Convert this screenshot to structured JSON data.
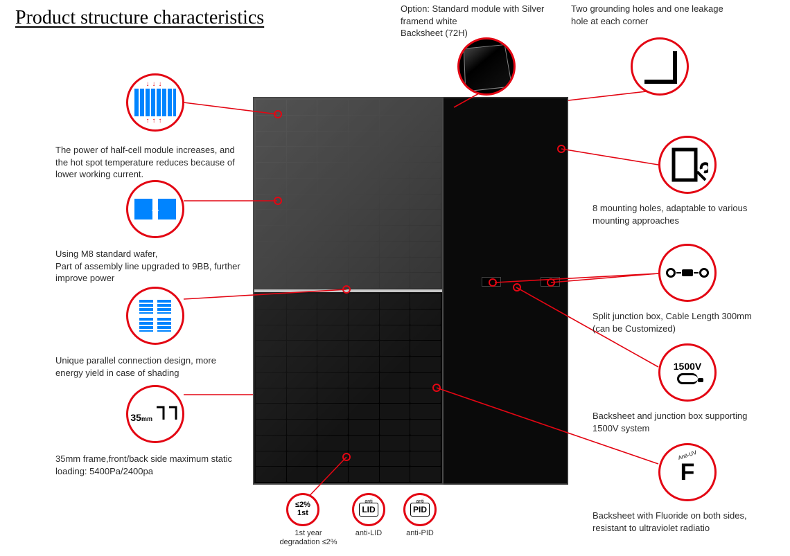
{
  "title": "Product structure characteristics",
  "accent_color": "#e30613",
  "left_callouts": [
    {
      "icon": "halfcell",
      "text": "The power of half-cell module increases, and the hot spot temperature reduces because of lower working current."
    },
    {
      "icon": "wafer",
      "text": "Using M8 standard wafer,\nPart of assembly line upgraded to 9BB, further improve power"
    },
    {
      "icon": "parallel",
      "text": "Unique parallel connection design, more energy yield in case of shading"
    },
    {
      "icon": "frame35",
      "badge": "35",
      "badge_unit": "mm",
      "text": "35mm frame,front/back side maximum static loading: 5400Pa/2400pa"
    }
  ],
  "top_callouts": [
    {
      "icon": "back-option",
      "text": "Option: Standard module with Silver framend white\n Backsheet (72H)"
    },
    {
      "icon": "corner",
      "text": "Two grounding holes and one leakage hole at each corner"
    }
  ],
  "right_callouts": [
    {
      "icon": "wrench",
      "text": "8 mounting holes, adaptable to various mounting approaches"
    },
    {
      "icon": "junction",
      "text": "Split junction box, Cable Length 300mm (can be Customized)"
    },
    {
      "icon": "v1500",
      "badge": "1500V",
      "text": "Backsheet and junction box supporting 1500V system"
    },
    {
      "icon": "antiuv",
      "badge_small": "Anti-UV",
      "badge": "F",
      "text": "Backsheet with Fluoride on both sides, resistant to ultraviolet radiatio"
    }
  ],
  "bottom_callouts": [
    {
      "icon": "degradation",
      "line1": "≤2%",
      "line2": "1st",
      "label": "1st year\ndegradation ≤2%"
    },
    {
      "icon": "lid",
      "anti": "anti",
      "badge": "LID",
      "label": "anti-LID"
    },
    {
      "icon": "pid",
      "anti": "anti",
      "badge": "PID",
      "label": "anti-PID"
    }
  ],
  "colors": {
    "accent": "#e30613",
    "cell_blue": "#0084ff",
    "panel_dark": "#1a1a1a",
    "panel_back": "#0a0a0a",
    "text": "#2b2b2b",
    "bg": "#ffffff"
  }
}
